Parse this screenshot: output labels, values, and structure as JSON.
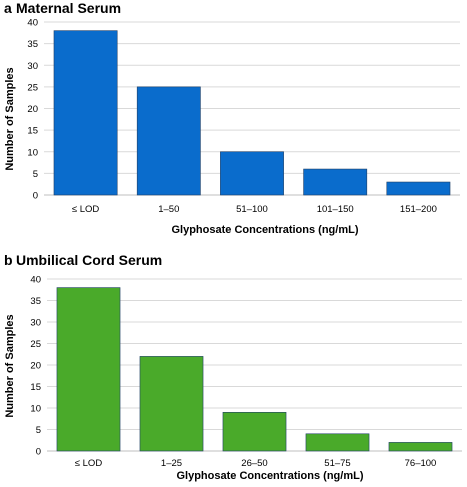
{
  "chart_data": [
    {
      "type": "bar",
      "panel": "a",
      "title": "Maternal Serum",
      "categories": [
        "≤ LOD",
        "1–50",
        "51–100",
        "101–150",
        "151–200"
      ],
      "values": [
        38,
        25,
        10,
        6,
        3
      ],
      "xlabel": "Glyphosate Concentrations (ng/mL)",
      "ylabel": "Number of Samples",
      "ylim": [
        0,
        40
      ],
      "yticks": [
        0,
        5,
        10,
        15,
        20,
        25,
        30,
        35,
        40
      ],
      "color": "#0a6ccc",
      "grid": true
    },
    {
      "type": "bar",
      "panel": "b",
      "title": "Umbilical Cord Serum",
      "categories": [
        "≤ LOD",
        "1–25",
        "26–50",
        "51–75",
        "76–100"
      ],
      "values": [
        38,
        22,
        9,
        4,
        2
      ],
      "xlabel": "Glyphosate Concentrations (ng/mL)",
      "ylabel": "Number of Samples",
      "ylim": [
        0,
        40
      ],
      "yticks": [
        0,
        5,
        10,
        15,
        20,
        25,
        30,
        35,
        40
      ],
      "color": "#4aaa2a",
      "grid": true
    }
  ]
}
